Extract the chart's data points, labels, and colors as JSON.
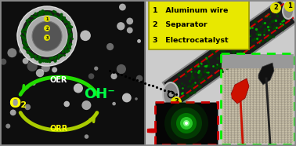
{
  "bg_color": "#cccccc",
  "left_panel_bg": "#111111",
  "yellow_box_color": "#e8e800",
  "legend_items": [
    "1   Aluminum wire",
    "2   Separator",
    "3   Electrocatalyst"
  ],
  "oer_label": "OER",
  "orr_label": "ORR",
  "o2_label": "O₂",
  "oh_label": "OH⁻",
  "arrow_green": "#22dd00",
  "text_yellow": "#ffff00",
  "text_green": "#00ff44",
  "text_white": "#ffffff",
  "border_green_dashed": "#00ee00",
  "border_red_dashed": "#cc0000",
  "label_circle_color": "#dddd00",
  "fig_width": 3.78,
  "fig_height": 1.86
}
